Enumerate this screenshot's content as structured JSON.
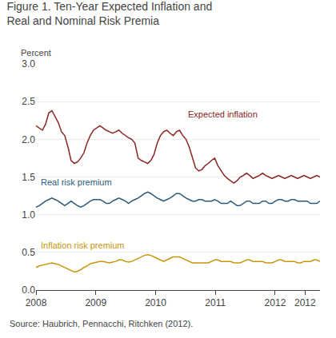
{
  "chart_data": {
    "type": "line",
    "title": "Figure 1. Ten-Year Expected Inflation and\nReal and Nominal Risk Premia",
    "ylabel": "Percent",
    "source": "Source: Haubrich, Pennacchi, Ritchken (2012).",
    "x": [
      2008,
      2008.053371,
      2008.106742,
      2008.160112,
      2008.213483,
      2008.266854,
      2008.320225,
      2008.373596,
      2008.426966,
      2008.480337,
      2008.533708,
      2008.587079,
      2008.640449,
      2008.69382,
      2008.747191,
      2008.800562,
      2008.853933,
      2008.907303,
      2008.960674,
      2009.014045,
      2009.067416,
      2009.120787,
      2009.174157,
      2009.227528,
      2009.280899,
      2009.33427,
      2009.38764,
      2009.441011,
      2009.494382,
      2009.547753,
      2009.601124,
      2009.654494,
      2009.707865,
      2009.761236,
      2009.814607,
      2009.867978,
      2009.921348,
      2009.974719,
      2010.02809,
      2010.081461,
      2010.134831,
      2010.188202,
      2010.241573,
      2010.294944,
      2010.348315,
      2010.401685,
      2010.455056,
      2010.508427,
      2010.561798,
      2010.615169,
      2010.668539,
      2010.72191,
      2010.775281,
      2010.828652,
      2010.882022,
      2010.935393,
      2010.988764,
      2011.042135,
      2011.095506,
      2011.148876,
      2011.202247,
      2011.255618,
      2011.308989,
      2011.36236,
      2011.41573,
      2011.469101,
      2011.522472,
      2011.575843,
      2011.629213,
      2011.682584,
      2011.735955,
      2011.789326,
      2011.842697,
      2011.896067,
      2011.949438,
      2012.002809,
      2012.05618,
      2012.109551,
      2012.162921,
      2012.216292,
      2012.269663,
      2012.323034,
      2012.376404,
      2012.429775,
      2012.483146,
      2012.536517,
      2012.589888,
      2012.643258,
      2012.696629,
      2012.75
    ],
    "series": [
      {
        "name": "Expected inflation",
        "color": "#8b2525",
        "values": [
          2.18,
          2.15,
          2.12,
          2.2,
          2.35,
          2.38,
          2.3,
          2.22,
          2.1,
          2.05,
          1.9,
          1.72,
          1.68,
          1.7,
          1.75,
          1.82,
          1.95,
          2.05,
          2.12,
          2.15,
          2.18,
          2.15,
          2.12,
          2.1,
          2.08,
          2.1,
          2.12,
          2.08,
          2.05,
          2.02,
          2.0,
          1.95,
          1.75,
          1.72,
          1.7,
          1.68,
          1.72,
          1.8,
          1.95,
          2.05,
          2.1,
          2.12,
          2.08,
          2.05,
          2.1,
          2.12,
          2.05,
          2.0,
          1.9,
          1.75,
          1.62,
          1.58,
          1.6,
          1.65,
          1.68,
          1.72,
          1.75,
          1.65,
          1.58,
          1.52,
          1.48,
          1.45,
          1.42,
          1.45,
          1.5,
          1.52,
          1.55,
          1.52,
          1.48,
          1.5,
          1.52,
          1.55,
          1.52,
          1.5,
          1.48,
          1.5,
          1.52,
          1.5,
          1.48,
          1.5,
          1.52,
          1.5,
          1.48,
          1.5,
          1.52,
          1.5,
          1.48,
          1.5,
          1.52,
          1.5
        ]
      },
      {
        "name": "Real risk premium",
        "color": "#2b5a7a",
        "values": [
          1.1,
          1.12,
          1.15,
          1.18,
          1.2,
          1.22,
          1.2,
          1.18,
          1.15,
          1.12,
          1.15,
          1.18,
          1.15,
          1.12,
          1.1,
          1.12,
          1.15,
          1.18,
          1.2,
          1.2,
          1.2,
          1.18,
          1.15,
          1.15,
          1.18,
          1.2,
          1.22,
          1.2,
          1.18,
          1.15,
          1.18,
          1.2,
          1.22,
          1.25,
          1.28,
          1.3,
          1.28,
          1.25,
          1.22,
          1.2,
          1.18,
          1.2,
          1.22,
          1.25,
          1.28,
          1.28,
          1.25,
          1.22,
          1.2,
          1.18,
          1.18,
          1.2,
          1.2,
          1.18,
          1.18,
          1.18,
          1.2,
          1.18,
          1.15,
          1.15,
          1.15,
          1.18,
          1.15,
          1.12,
          1.12,
          1.15,
          1.18,
          1.18,
          1.15,
          1.15,
          1.15,
          1.18,
          1.18,
          1.15,
          1.15,
          1.18,
          1.2,
          1.2,
          1.18,
          1.18,
          1.2,
          1.2,
          1.18,
          1.18,
          1.18,
          1.18,
          1.15,
          1.15,
          1.15,
          1.18
        ]
      },
      {
        "name": "Inflation risk premium",
        "color": "#c8960a",
        "values": [
          0.3,
          0.32,
          0.33,
          0.34,
          0.35,
          0.36,
          0.35,
          0.34,
          0.32,
          0.3,
          0.28,
          0.26,
          0.24,
          0.25,
          0.27,
          0.3,
          0.32,
          0.35,
          0.36,
          0.37,
          0.38,
          0.38,
          0.37,
          0.36,
          0.37,
          0.38,
          0.4,
          0.4,
          0.38,
          0.37,
          0.38,
          0.4,
          0.42,
          0.44,
          0.46,
          0.47,
          0.46,
          0.44,
          0.42,
          0.4,
          0.38,
          0.4,
          0.42,
          0.44,
          0.44,
          0.44,
          0.42,
          0.4,
          0.38,
          0.36,
          0.36,
          0.36,
          0.36,
          0.36,
          0.36,
          0.38,
          0.4,
          0.4,
          0.38,
          0.38,
          0.38,
          0.38,
          0.36,
          0.36,
          0.36,
          0.38,
          0.4,
          0.4,
          0.38,
          0.38,
          0.38,
          0.38,
          0.36,
          0.36,
          0.36,
          0.38,
          0.4,
          0.4,
          0.38,
          0.38,
          0.38,
          0.38,
          0.36,
          0.36,
          0.38,
          0.38,
          0.38,
          0.4,
          0.4,
          0.38
        ]
      }
    ],
    "xlim": [
      2008,
      2012.75
    ],
    "xticks": [
      2008,
      2009,
      2010,
      2011,
      2012,
      {
        "value": 2012.5,
        "label": "2012"
      }
    ],
    "ylim": [
      0,
      3
    ],
    "yticks": [
      {
        "value": 0,
        "label": "0.0"
      },
      0.5,
      {
        "value": 1,
        "label": "1.0"
      },
      1.5,
      {
        "value": 2,
        "label": "2.0"
      },
      2.5,
      {
        "value": 3,
        "label": "3.0"
      }
    ],
    "grid": "y"
  }
}
